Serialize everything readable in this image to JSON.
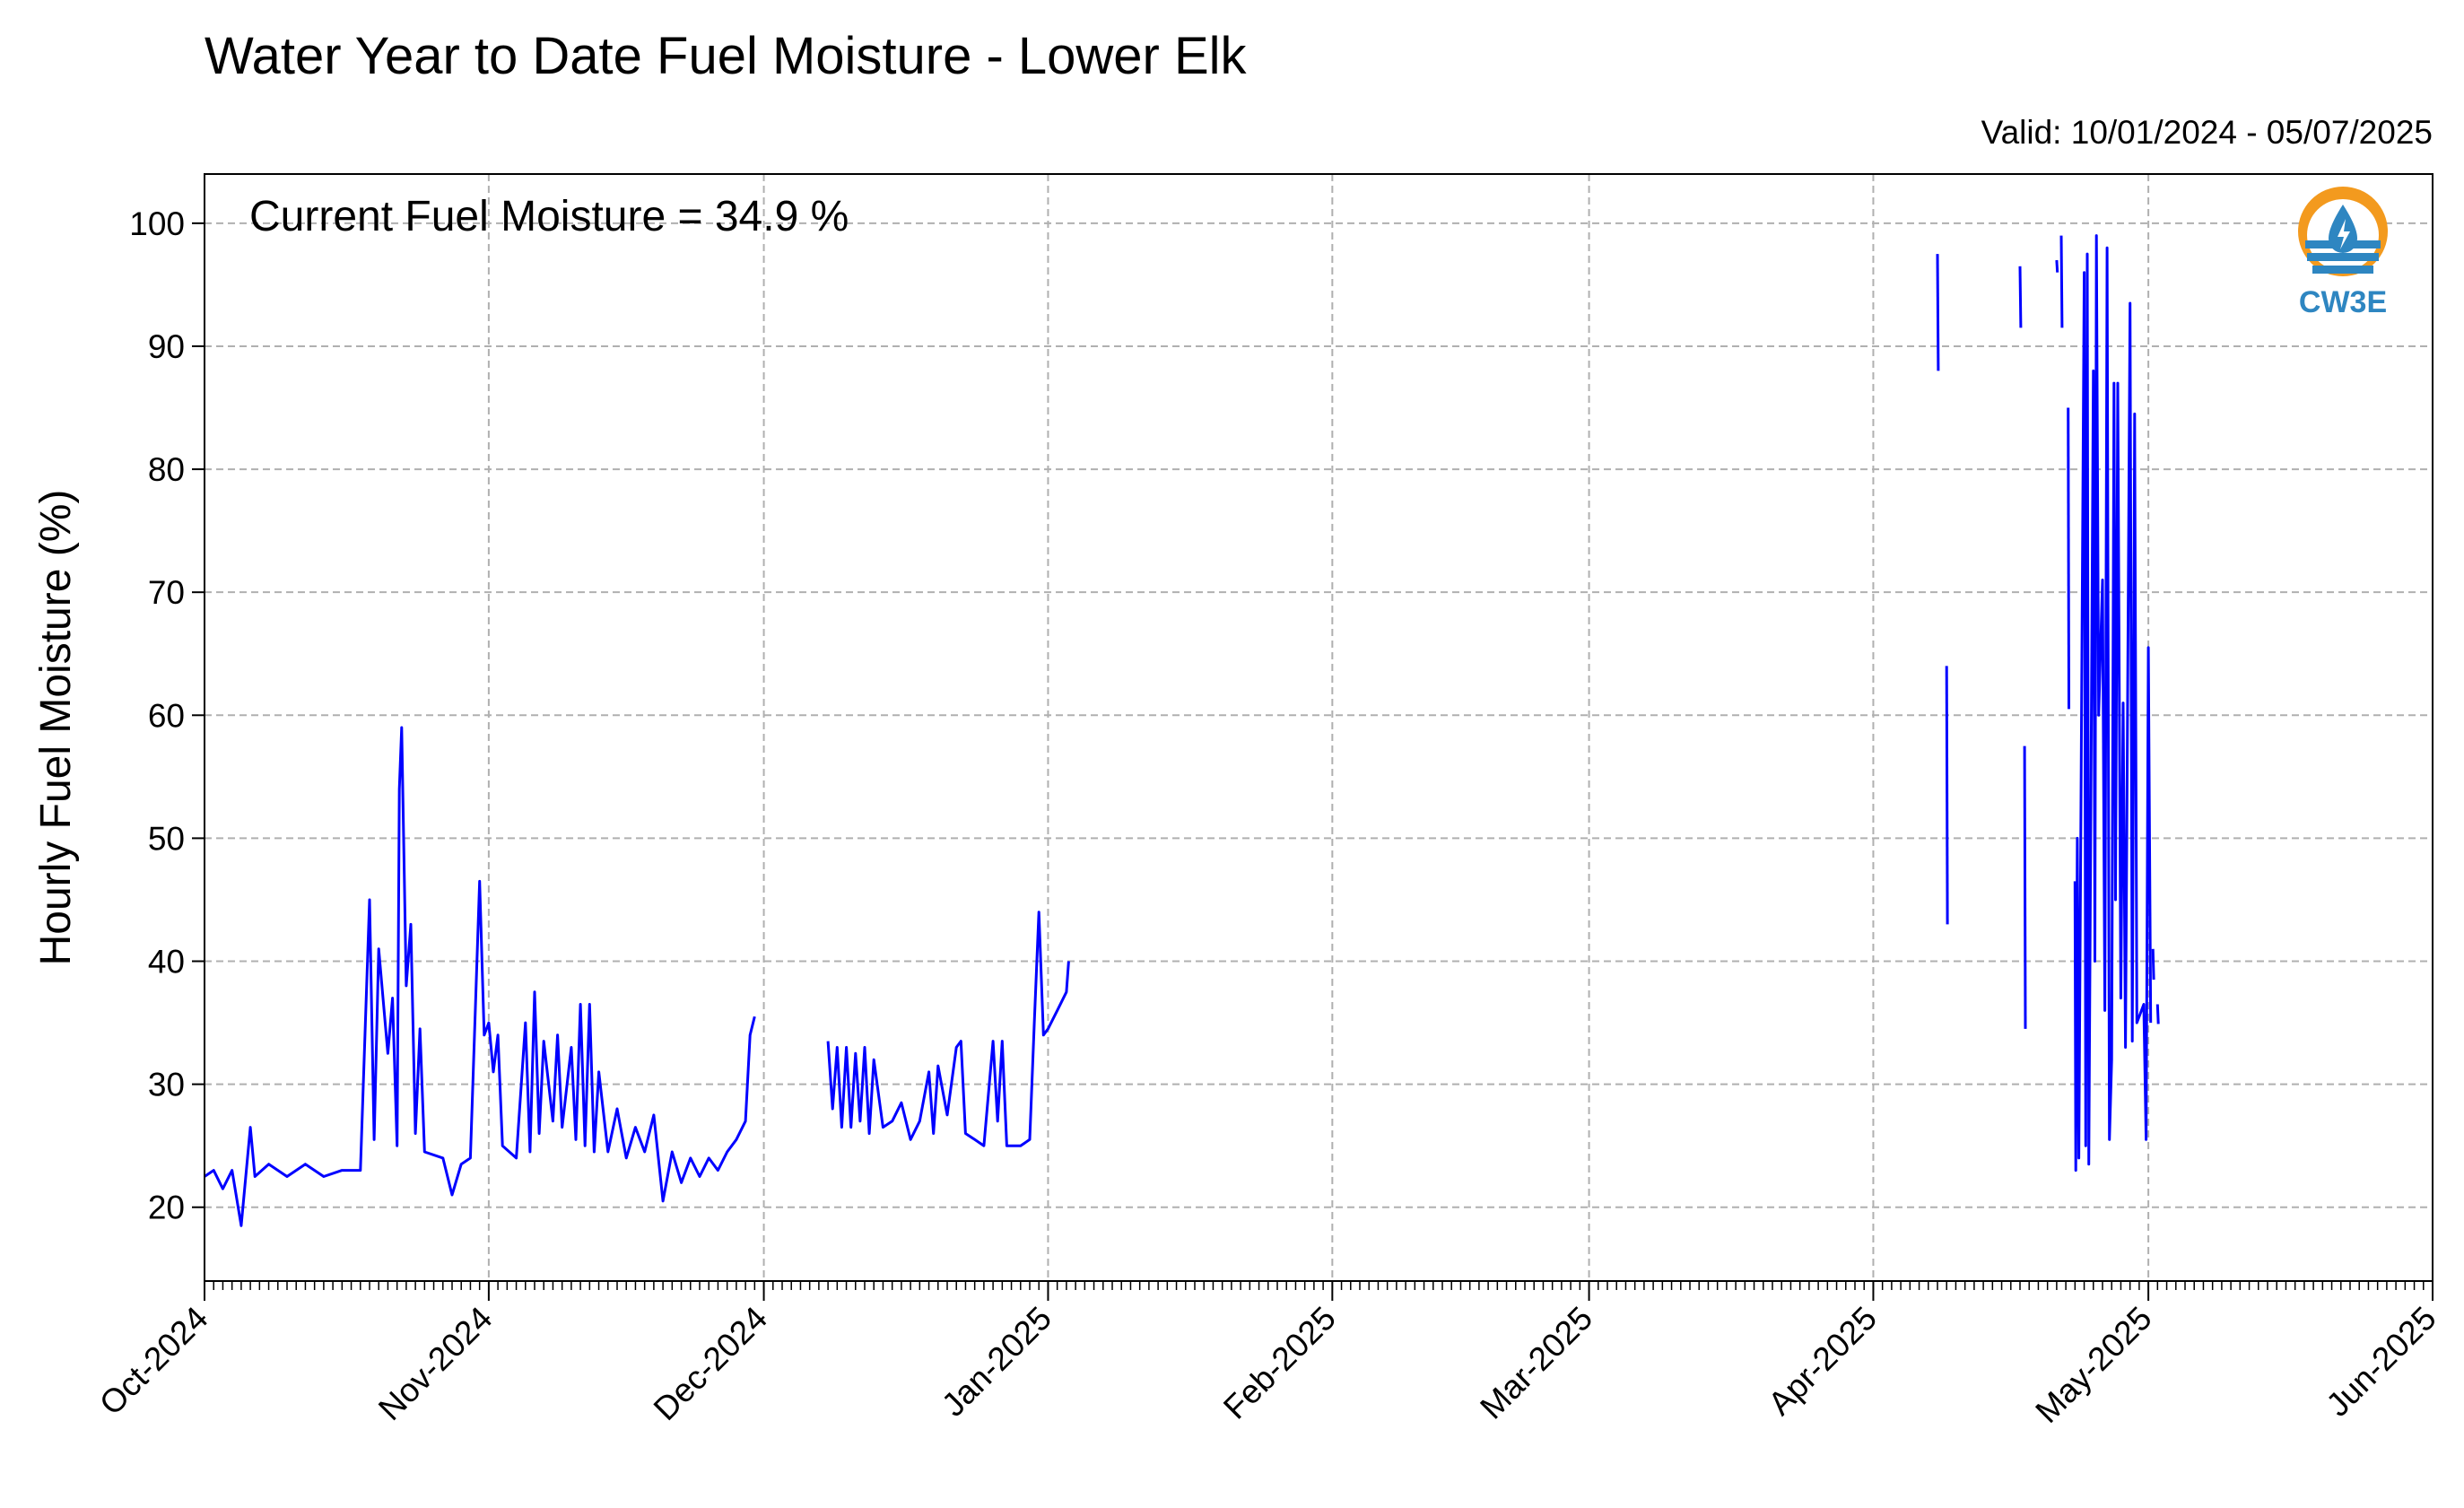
{
  "chart_data": {
    "type": "line",
    "title": "Water Year to Date Fuel Moisture - Lower Elk",
    "subtitle": "Valid: 10/01/2024 - 05/07/2025",
    "annotation": "Current Fuel Moisture = 34.9 %",
    "xlabel": "",
    "ylabel": "Hourly Fuel Moisture (%)",
    "xlim": [
      "2024-10-01",
      "2025-06-01"
    ],
    "ylim": [
      14,
      104
    ],
    "yticks": [
      20,
      30,
      40,
      50,
      60,
      70,
      80,
      90,
      100
    ],
    "xticks": [
      {
        "date": "2024-10-01",
        "label": "Oct-2024"
      },
      {
        "date": "2024-11-01",
        "label": "Nov-2024"
      },
      {
        "date": "2024-12-01",
        "label": "Dec-2024"
      },
      {
        "date": "2025-01-01",
        "label": "Jan-2025"
      },
      {
        "date": "2025-02-01",
        "label": "Feb-2025"
      },
      {
        "date": "2025-03-01",
        "label": "Mar-2025"
      },
      {
        "date": "2025-04-01",
        "label": "Apr-2025"
      },
      {
        "date": "2025-05-01",
        "label": "May-2025"
      },
      {
        "date": "2025-06-01",
        "label": "Jun-2025"
      }
    ],
    "grid": true,
    "line_color": "#0000ff",
    "series": [
      {
        "segments": [
          [
            [
              "2024-10-01",
              22.5
            ],
            [
              "2024-10-02",
              23.0
            ],
            [
              "2024-10-03",
              21.5
            ],
            [
              "2024-10-04",
              23.0
            ],
            [
              "2024-10-05",
              18.5
            ],
            [
              "2024-10-06",
              26.5
            ],
            [
              "2024-10-06T12:00",
              22.5
            ],
            [
              "2024-10-08",
              23.5
            ],
            [
              "2024-10-10",
              22.5
            ],
            [
              "2024-10-12",
              23.5
            ],
            [
              "2024-10-14",
              22.5
            ],
            [
              "2024-10-16",
              23.0
            ],
            [
              "2024-10-18",
              23.0
            ],
            [
              "2024-10-19",
              45.0
            ],
            [
              "2024-10-19T12:00",
              25.5
            ],
            [
              "2024-10-20",
              41.0
            ],
            [
              "2024-10-21",
              32.5
            ],
            [
              "2024-10-21T12:00",
              37.0
            ],
            [
              "2024-10-22",
              25.0
            ],
            [
              "2024-10-22T06:00",
              54.0
            ],
            [
              "2024-10-22T12:00",
              59.0
            ],
            [
              "2024-10-23",
              38.0
            ],
            [
              "2024-10-23T12:00",
              43.0
            ],
            [
              "2024-10-24",
              26.0
            ],
            [
              "2024-10-24T12:00",
              34.5
            ],
            [
              "2024-10-25",
              24.5
            ],
            [
              "2024-10-27",
              24.0
            ],
            [
              "2024-10-28",
              21.0
            ],
            [
              "2024-10-29",
              23.5
            ],
            [
              "2024-10-30",
              24.0
            ],
            [
              "2024-10-31",
              46.5
            ],
            [
              "2024-10-31T12:00",
              34.0
            ],
            [
              "2024-11-01",
              35.0
            ],
            [
              "2024-11-01T12:00",
              31.0
            ],
            [
              "2024-11-02",
              34.0
            ],
            [
              "2024-11-02T12:00",
              25.0
            ],
            [
              "2024-11-04",
              24.0
            ],
            [
              "2024-11-05",
              35.0
            ],
            [
              "2024-11-05T12:00",
              24.5
            ],
            [
              "2024-11-06",
              37.5
            ],
            [
              "2024-11-06T12:00",
              26.0
            ],
            [
              "2024-11-07",
              33.5
            ],
            [
              "2024-11-08",
              27.0
            ],
            [
              "2024-11-08T12:00",
              34.0
            ],
            [
              "2024-11-09",
              26.5
            ],
            [
              "2024-11-10",
              33.0
            ],
            [
              "2024-11-10T12:00",
              25.5
            ],
            [
              "2024-11-11",
              36.5
            ],
            [
              "2024-11-11T12:00",
              25.0
            ],
            [
              "2024-11-12",
              36.5
            ],
            [
              "2024-11-12T12:00",
              24.5
            ],
            [
              "2024-11-13",
              31.0
            ],
            [
              "2024-11-14",
              24.5
            ],
            [
              "2024-11-15",
              28.0
            ],
            [
              "2024-11-16",
              24.0
            ],
            [
              "2024-11-17",
              26.5
            ],
            [
              "2024-11-18",
              24.5
            ],
            [
              "2024-11-19",
              27.5
            ],
            [
              "2024-11-20",
              20.5
            ],
            [
              "2024-11-21",
              24.5
            ],
            [
              "2024-11-22",
              22.0
            ],
            [
              "2024-11-23",
              24.0
            ],
            [
              "2024-11-24",
              22.5
            ],
            [
              "2024-11-25",
              24.0
            ],
            [
              "2024-11-26",
              23.0
            ],
            [
              "2024-11-27",
              24.5
            ],
            [
              "2024-11-28",
              25.5
            ],
            [
              "2024-11-29",
              27.0
            ],
            [
              "2024-11-29T12:00",
              34.0
            ],
            [
              "2024-11-30",
              35.5
            ]
          ],
          [
            [
              "2024-12-08",
              33.5
            ],
            [
              "2024-12-08T12:00",
              28.0
            ],
            [
              "2024-12-09",
              33.0
            ],
            [
              "2024-12-09T12:00",
              26.5
            ],
            [
              "2024-12-10",
              33.0
            ],
            [
              "2024-12-10T12:00",
              26.5
            ],
            [
              "2024-12-11",
              32.5
            ],
            [
              "2024-12-11T12:00",
              27.0
            ],
            [
              "2024-12-12",
              33.0
            ],
            [
              "2024-12-12T12:00",
              26.0
            ],
            [
              "2024-12-13",
              32.0
            ],
            [
              "2024-12-14",
              26.5
            ],
            [
              "2024-12-15",
              27.0
            ],
            [
              "2024-12-16",
              28.5
            ],
            [
              "2024-12-17",
              25.5
            ],
            [
              "2024-12-18",
              27.0
            ],
            [
              "2024-12-19",
              31.0
            ],
            [
              "2024-12-19T12:00",
              26.0
            ],
            [
              "2024-12-20",
              31.5
            ],
            [
              "2024-12-21",
              27.5
            ],
            [
              "2024-12-22",
              33.0
            ],
            [
              "2024-12-22T12:00",
              33.5
            ],
            [
              "2024-12-23",
              26.0
            ],
            [
              "2024-12-24",
              25.5
            ],
            [
              "2024-12-25",
              25.0
            ],
            [
              "2024-12-26",
              33.5
            ],
            [
              "2024-12-26T12:00",
              27.0
            ],
            [
              "2024-12-27",
              33.5
            ],
            [
              "2024-12-27T12:00",
              25.0
            ],
            [
              "2024-12-29",
              25.0
            ],
            [
              "2024-12-30",
              25.5
            ],
            [
              "2024-12-30T12:00",
              35.0
            ],
            [
              "2024-12-31",
              44.0
            ],
            [
              "2024-12-31T12:00",
              34.0
            ],
            [
              "2025-01-01",
              34.5
            ],
            [
              "2025-01-02",
              36.0
            ],
            [
              "2025-01-03",
              37.5
            ],
            [
              "2025-01-03T06:00",
              40.0
            ]
          ],
          [
            [
              "2025-04-08",
              97.5
            ],
            [
              "2025-04-08T02:00",
              88.0
            ]
          ],
          [
            [
              "2025-04-09",
              64.0
            ],
            [
              "2025-04-09T02:00",
              43.0
            ]
          ],
          [
            [
              "2025-04-17",
              96.5
            ],
            [
              "2025-04-17T02:00",
              91.5
            ]
          ],
          [
            [
              "2025-04-17T12:00",
              57.5
            ],
            [
              "2025-04-17T14:00",
              34.5
            ]
          ],
          [
            [
              "2025-04-21",
              97.0
            ],
            [
              "2025-04-21T02:00",
              96.0
            ]
          ],
          [
            [
              "2025-04-21T12:00",
              99.0
            ],
            [
              "2025-04-21T14:00",
              91.5
            ]
          ],
          [
            [
              "2025-04-22T06:00",
              85.0
            ],
            [
              "2025-04-22T08:00",
              60.5
            ]
          ],
          [
            [
              "2025-04-23",
              46.5
            ],
            [
              "2025-04-23T02:00",
              23.0
            ],
            [
              "2025-04-23T06:00",
              50.0
            ],
            [
              "2025-04-23T10:00",
              24.0
            ],
            [
              "2025-04-24",
              96.0
            ],
            [
              "2025-04-24T04:00",
              25.0
            ],
            [
              "2025-04-24T08:00",
              97.5
            ],
            [
              "2025-04-24T12:00",
              23.5
            ],
            [
              "2025-04-25",
              88.0
            ],
            [
              "2025-04-25T04:00",
              40.0
            ],
            [
              "2025-04-25T08:00",
              99.0
            ],
            [
              "2025-04-25T14:00",
              60.0
            ],
            [
              "2025-04-26",
              71.0
            ],
            [
              "2025-04-26T06:00",
              36.0
            ],
            [
              "2025-04-26T12:00",
              98.0
            ],
            [
              "2025-04-26T18:00",
              25.5
            ],
            [
              "2025-04-27",
              32.0
            ],
            [
              "2025-04-27T06:00",
              87.0
            ],
            [
              "2025-04-27T10:00",
              45.0
            ],
            [
              "2025-04-27T16:00",
              87.0
            ],
            [
              "2025-04-28",
              37.0
            ],
            [
              "2025-04-28T06:00",
              61.0
            ],
            [
              "2025-04-28T12:00",
              33.0
            ],
            [
              "2025-04-29",
              93.5
            ],
            [
              "2025-04-29T06:00",
              33.5
            ],
            [
              "2025-04-29T12:00",
              84.5
            ],
            [
              "2025-04-29T18:00",
              35.0
            ],
            [
              "2025-04-30T12:00",
              36.5
            ],
            [
              "2025-04-30T18:00",
              25.5
            ],
            [
              "2025-05-01",
              65.5
            ],
            [
              "2025-05-01T06:00",
              35.0
            ]
          ],
          [
            [
              "2025-05-01T12:00",
              41.0
            ],
            [
              "2025-05-01T14:00",
              38.5
            ]
          ],
          [
            [
              "2025-05-02",
              36.5
            ],
            [
              "2025-05-02T02:00",
              34.9
            ]
          ]
        ]
      }
    ]
  }
}
